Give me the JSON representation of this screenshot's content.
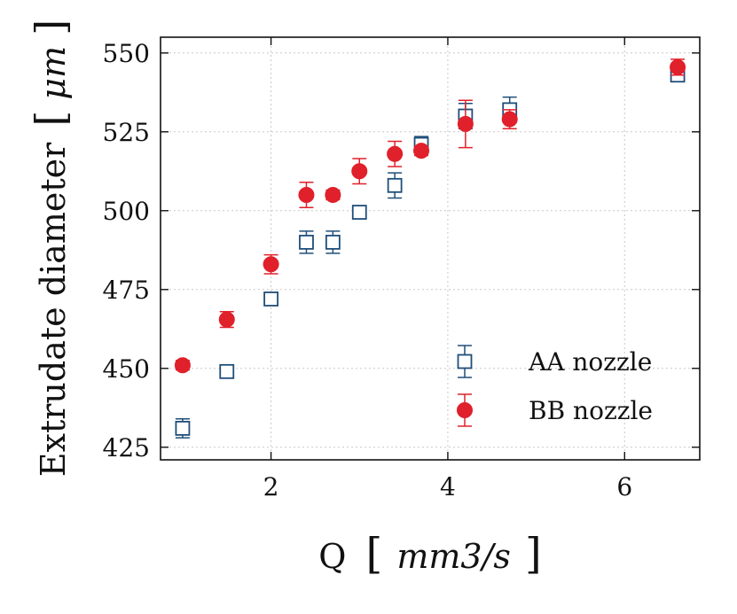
{
  "colors": {
    "aa": "#1f4e79",
    "bb": "#e0202a",
    "grid": "#c8c8c8",
    "axis": "#111111"
  },
  "chart_data": {
    "type": "scatter",
    "title": "",
    "xlabel": "Q",
    "xlabel_units": "mm3/s",
    "ylabel": "Extrudate diameter",
    "ylabel_units": "μm",
    "xlim": [
      0.75,
      6.85
    ],
    "ylim": [
      421,
      555
    ],
    "xticks": [
      2,
      4,
      6
    ],
    "yticks": [
      425,
      450,
      475,
      500,
      525,
      550
    ],
    "grid": true,
    "legend": {
      "placement": "bottom-right",
      "entries": [
        "AA nozzle",
        "BB nozzle"
      ]
    },
    "series": [
      {
        "name": "AA nozzle",
        "marker": "open-square",
        "color": "#1f4e79",
        "points": [
          {
            "x": 1.0,
            "y": 431,
            "err": 3
          },
          {
            "x": 1.5,
            "y": 449,
            "err": 1.5
          },
          {
            "x": 2.0,
            "y": 472,
            "err": 1.5
          },
          {
            "x": 2.4,
            "y": 490,
            "err": 3.5
          },
          {
            "x": 2.7,
            "y": 490,
            "err": 3.5
          },
          {
            "x": 3.0,
            "y": 499.5,
            "err": 1.5
          },
          {
            "x": 3.4,
            "y": 508,
            "err": 4
          },
          {
            "x": 3.7,
            "y": 521,
            "err": 2.5
          },
          {
            "x": 4.2,
            "y": 530,
            "err": 4
          },
          {
            "x": 4.7,
            "y": 532,
            "err": 4
          },
          {
            "x": 6.6,
            "y": 543,
            "err": 2
          }
        ]
      },
      {
        "name": "BB nozzle",
        "marker": "filled-circle",
        "color": "#e0202a",
        "points": [
          {
            "x": 1.0,
            "y": 451,
            "err": 1.5
          },
          {
            "x": 1.5,
            "y": 465.5,
            "err": 2.5
          },
          {
            "x": 2.0,
            "y": 483,
            "err": 3
          },
          {
            "x": 2.4,
            "y": 505,
            "err": 4
          },
          {
            "x": 2.7,
            "y": 505,
            "err": 1.5
          },
          {
            "x": 3.0,
            "y": 512.5,
            "err": 4
          },
          {
            "x": 3.4,
            "y": 518,
            "err": 4
          },
          {
            "x": 3.7,
            "y": 519,
            "err": 1.5
          },
          {
            "x": 4.2,
            "y": 527.5,
            "err": 7.5
          },
          {
            "x": 4.7,
            "y": 529,
            "err": 3
          },
          {
            "x": 6.6,
            "y": 545.5,
            "err": 2.5
          }
        ]
      }
    ]
  }
}
